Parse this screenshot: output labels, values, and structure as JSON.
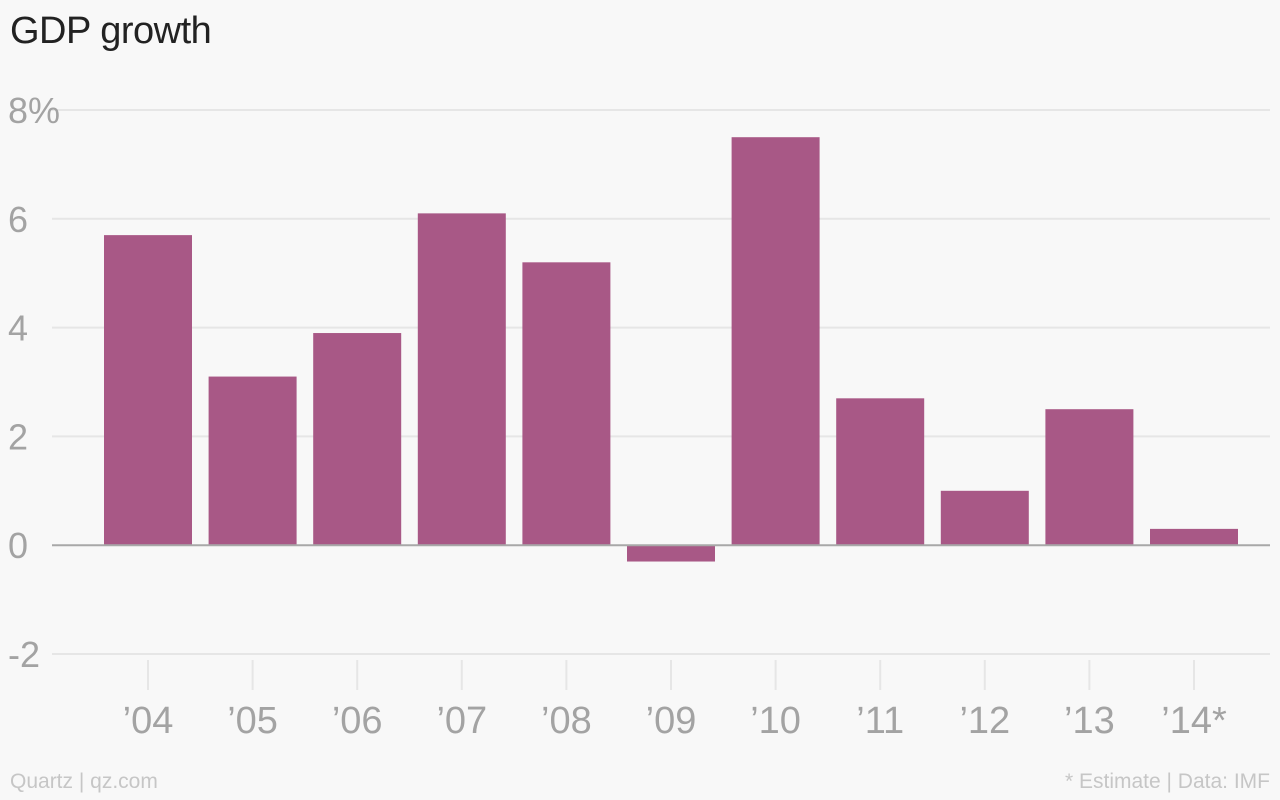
{
  "chart_data": {
    "type": "bar",
    "title": "GDP growth",
    "categories": [
      "’04",
      "’05",
      "’06",
      "’07",
      "’08",
      "’09",
      "’10",
      "’11",
      "’12",
      "’13",
      "’14*"
    ],
    "values": [
      5.7,
      3.1,
      3.9,
      6.1,
      5.2,
      -0.3,
      7.5,
      2.7,
      1.0,
      2.5,
      0.3
    ],
    "ylim": [
      -2,
      8
    ],
    "yticks": [
      8,
      6,
      4,
      2,
      0,
      -2
    ],
    "ytick_labels": [
      "8%",
      "6",
      "4",
      "2",
      "0",
      "-2"
    ],
    "xlabel": "",
    "ylabel": "",
    "grid": true,
    "bar_color": "#a85886"
  },
  "footer": {
    "left": "Quartz | qz.com",
    "right": "* Estimate | Data: IMF"
  }
}
